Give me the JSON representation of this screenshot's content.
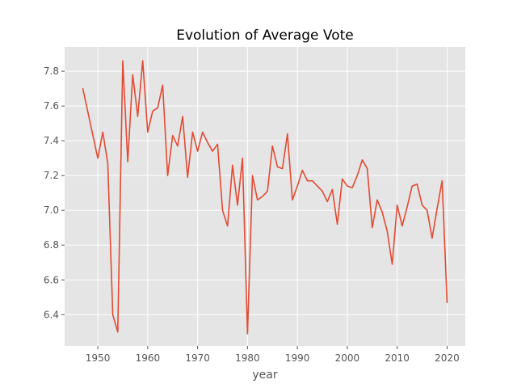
{
  "chart_data": {
    "type": "line",
    "title": "Evolution of Average Vote",
    "xlabel": "year",
    "ylabel": "",
    "xlim": [
      1943.35,
      2023.65
    ],
    "ylim": [
      6.22,
      7.94
    ],
    "xticks": [
      1950,
      1960,
      1970,
      1980,
      1990,
      2000,
      2010,
      2020
    ],
    "yticks": [
      6.4,
      6.6,
      6.8,
      7.0,
      7.2,
      7.4,
      7.6,
      7.8
    ],
    "ytick_labels": [
      "6.4",
      "6.6",
      "6.8",
      "7.0",
      "7.2",
      "7.4",
      "7.6",
      "7.8"
    ],
    "grid": true,
    "style": "ggplot",
    "colors": {
      "line": "#e24a33",
      "background": "#e5e5e5",
      "grid": "#ffffff"
    },
    "series": [
      {
        "x": [
          1947,
          1950,
          1951,
          1952,
          1953,
          1954,
          1955,
          1956,
          1957,
          1958,
          1959,
          1960,
          1961,
          1962,
          1963,
          1964,
          1965,
          1966,
          1967,
          1968,
          1969,
          1970,
          1971,
          1972,
          1973,
          1974,
          1975,
          1976,
          1977,
          1978,
          1979,
          1980,
          1981,
          1982,
          1983,
          1984,
          1985,
          1986,
          1987,
          1988,
          1989,
          1990,
          1991,
          1992,
          1993,
          1994,
          1995,
          1996,
          1997,
          1998,
          1999,
          2000,
          2001,
          2002,
          2003,
          2004,
          2005,
          2006,
          2007,
          2008,
          2009,
          2010,
          2011,
          2012,
          2013,
          2014,
          2015,
          2016,
          2017,
          2018,
          2019,
          2020
        ],
        "values": [
          7.7,
          7.3,
          7.45,
          7.27,
          6.4,
          6.3,
          7.86,
          7.28,
          7.78,
          7.54,
          7.86,
          7.45,
          7.57,
          7.59,
          7.72,
          7.2,
          7.43,
          7.37,
          7.54,
          7.19,
          7.45,
          7.34,
          7.45,
          7.39,
          7.34,
          7.38,
          7.0,
          6.91,
          7.26,
          7.03,
          7.3,
          6.29,
          7.2,
          7.06,
          7.08,
          7.11,
          7.37,
          7.25,
          7.24,
          7.44,
          7.06,
          7.14,
          7.23,
          7.17,
          7.17,
          7.14,
          7.11,
          7.05,
          7.12,
          6.92,
          7.18,
          7.14,
          7.13,
          7.2,
          7.29,
          7.24,
          6.9,
          7.06,
          6.99,
          6.88,
          6.69,
          7.03,
          6.91,
          7.02,
          7.14,
          7.15,
          7.03,
          7.0,
          6.84,
          7.01,
          7.17,
          6.47
        ]
      }
    ]
  }
}
